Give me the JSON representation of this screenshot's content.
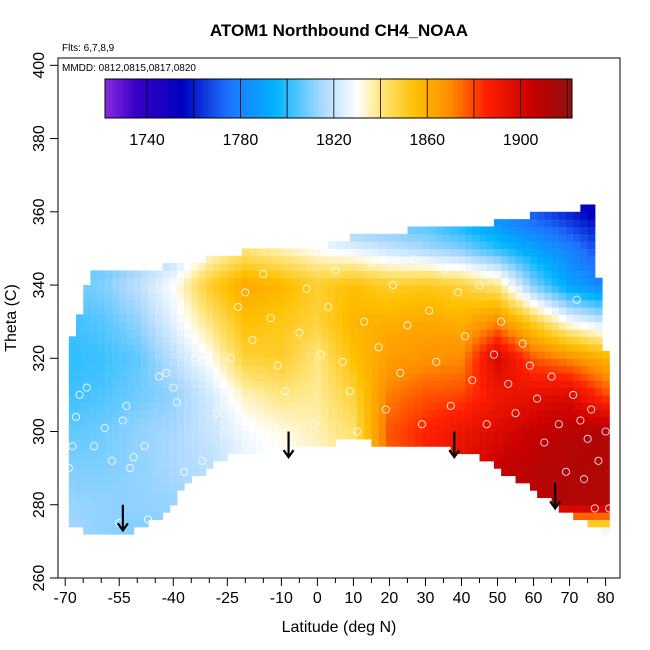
{
  "chart_data": {
    "type": "heatmap",
    "title": "ATOM1 Northbound CH4_NOAA",
    "annotations": {
      "flights": "Flts: 6,7,8,9",
      "dates": "MMDD: 0812,0815,0817,0820"
    },
    "xlabel": "Latitude (deg N)",
    "ylabel": "Theta (C)",
    "xlim": [
      -72,
      84
    ],
    "ylim": [
      260,
      402
    ],
    "x_ticks": [
      -70,
      -55,
      -40,
      -25,
      -10,
      0,
      10,
      20,
      30,
      40,
      50,
      60,
      70,
      80
    ],
    "x_tick_labels": [
      "-70",
      "-55",
      "-40",
      "-25",
      "-10",
      "0",
      "10",
      "20",
      "30",
      "40",
      "50",
      "60",
      "70",
      "80"
    ],
    "x_minor_ticks": [
      -65,
      -60,
      -50,
      -45,
      -35,
      -30,
      -20,
      -15,
      -5,
      5,
      15,
      25,
      35,
      45,
      55,
      65,
      75
    ],
    "y_ticks": [
      260,
      280,
      300,
      320,
      340,
      360,
      380,
      400
    ],
    "y_tick_labels": [
      "260",
      "280",
      "300",
      "320",
      "340",
      "360",
      "380",
      "400"
    ],
    "colorbar": {
      "range": [
        1722,
        1922
      ],
      "ticks": [
        1740,
        1780,
        1820,
        1860,
        1900
      ],
      "tick_labels": [
        "1740",
        "1780",
        "1820",
        "1860",
        "1900"
      ],
      "stops": [
        {
          "v": 1722,
          "c": "#8a2be2"
        },
        {
          "v": 1735,
          "c": "#3a00c8"
        },
        {
          "v": 1755,
          "c": "#0000c0"
        },
        {
          "v": 1775,
          "c": "#1e73ff"
        },
        {
          "v": 1795,
          "c": "#00b4ff"
        },
        {
          "v": 1815,
          "c": "#aad8ff"
        },
        {
          "v": 1830,
          "c": "#ffffff"
        },
        {
          "v": 1840,
          "c": "#ffe680"
        },
        {
          "v": 1855,
          "c": "#ffc000"
        },
        {
          "v": 1870,
          "c": "#ff8c00"
        },
        {
          "v": 1885,
          "c": "#ff2000"
        },
        {
          "v": 1905,
          "c": "#c80000"
        },
        {
          "v": 1922,
          "c": "#901010"
        }
      ]
    },
    "field": {
      "description": "approximate CH4 field sampled on a latitude x theta grid",
      "lat": [
        -70,
        -60,
        -50,
        -40,
        -30,
        -20,
        -10,
        0,
        10,
        20,
        30,
        40,
        50,
        60,
        70,
        80
      ],
      "theta": [
        272,
        280,
        290,
        300,
        310,
        320,
        330,
        340,
        350,
        360
      ],
      "values": [
        [
          1815,
          1812,
          1810,
          1811,
          1812,
          1814,
          1816,
          1817,
          1818,
          1815,
          1815,
          1815,
          1815,
          1815,
          1815,
          1815
        ],
        [
          1813,
          1812,
          1812,
          1813,
          1815,
          1820,
          1825,
          1830,
          1835,
          1860,
          1878,
          1892,
          1905,
          1910,
          1912,
          1912
        ],
        [
          1810,
          1810,
          1812,
          1815,
          1818,
          1825,
          1830,
          1832,
          1840,
          1875,
          1885,
          1895,
          1905,
          1910,
          1912,
          1912
        ],
        [
          1806,
          1808,
          1812,
          1815,
          1820,
          1828,
          1832,
          1836,
          1842,
          1878,
          1885,
          1892,
          1898,
          1905,
          1910,
          1912
        ],
        [
          1802,
          1804,
          1808,
          1812,
          1822,
          1835,
          1840,
          1838,
          1848,
          1872,
          1878,
          1880,
          1890,
          1895,
          1898,
          1880
        ],
        [
          1800,
          1802,
          1806,
          1818,
          1830,
          1848,
          1850,
          1840,
          1855,
          1865,
          1868,
          1870,
          1900,
          1878,
          1870,
          1860
        ],
        [
          1802,
          1805,
          1812,
          1825,
          1840,
          1855,
          1852,
          1848,
          1858,
          1860,
          1862,
          1860,
          1870,
          1850,
          1830,
          1820
        ],
        [
          1808,
          1810,
          1818,
          1830,
          1850,
          1862,
          1858,
          1850,
          1855,
          1850,
          1852,
          1848,
          1840,
          1810,
          1790,
          1780
        ],
        [
          1805,
          1805,
          1810,
          1815,
          1830,
          1840,
          1835,
          1830,
          1825,
          1820,
          1815,
          1810,
          1800,
          1790,
          1780,
          1765
        ],
        [
          1800,
          1800,
          1800,
          1800,
          1800,
          1800,
          1800,
          1800,
          1800,
          1800,
          1800,
          1790,
          1780,
          1770,
          1760,
          1750
        ]
      ]
    },
    "coverage": {
      "bottom_theta_by_lat": [
        [
          -68,
          274
        ],
        [
          -61,
          272
        ],
        [
          -52,
          273
        ],
        [
          -44,
          276
        ],
        [
          -35,
          287
        ],
        [
          -25,
          293
        ],
        [
          -10,
          296
        ],
        [
          0,
          296
        ],
        [
          10,
          298
        ],
        [
          20,
          296
        ],
        [
          38,
          295
        ],
        [
          44,
          294
        ],
        [
          55,
          287
        ],
        [
          66,
          280
        ],
        [
          76,
          274
        ],
        [
          80,
          273
        ]
      ],
      "top_theta_by_lat": [
        [
          -68,
          325
        ],
        [
          -66,
          332
        ],
        [
          -65,
          338
        ],
        [
          -62,
          344
        ],
        [
          -50,
          344
        ],
        [
          -42,
          345
        ],
        [
          -30,
          347
        ],
        [
          -15,
          350
        ],
        [
          0,
          350
        ],
        [
          10,
          353
        ],
        [
          25,
          355
        ],
        [
          40,
          356
        ],
        [
          50,
          357
        ],
        [
          60,
          359
        ],
        [
          72,
          360
        ],
        [
          76,
          362
        ],
        [
          80,
          322
        ]
      ]
    },
    "sample_points": [
      [
        -69,
        290
      ],
      [
        -68,
        296
      ],
      [
        -67,
        304
      ],
      [
        -66,
        310
      ],
      [
        -64,
        312
      ],
      [
        -62,
        296
      ],
      [
        -59,
        301
      ],
      [
        -57,
        292
      ],
      [
        -55,
        275
      ],
      [
        -54,
        303
      ],
      [
        -53,
        307
      ],
      [
        -52,
        290
      ],
      [
        -51,
        293
      ],
      [
        -48,
        296
      ],
      [
        -47,
        276
      ],
      [
        -44,
        315
      ],
      [
        -42,
        316
      ],
      [
        -40,
        312
      ],
      [
        -39,
        308
      ],
      [
        -37,
        289
      ],
      [
        -34,
        320
      ],
      [
        -32,
        292
      ],
      [
        -28,
        305
      ],
      [
        -26,
        300
      ],
      [
        -24,
        320
      ],
      [
        -22,
        334
      ],
      [
        -20,
        338
      ],
      [
        -18,
        325
      ],
      [
        -15,
        343
      ],
      [
        -13,
        331
      ],
      [
        -11,
        318
      ],
      [
        -9,
        311
      ],
      [
        -7,
        296
      ],
      [
        -5,
        327
      ],
      [
        -3,
        339
      ],
      [
        -1,
        302
      ],
      [
        1,
        321
      ],
      [
        3,
        334
      ],
      [
        5,
        344
      ],
      [
        7,
        319
      ],
      [
        9,
        311
      ],
      [
        11,
        300
      ],
      [
        13,
        330
      ],
      [
        15,
        346
      ],
      [
        17,
        323
      ],
      [
        19,
        306
      ],
      [
        21,
        340
      ],
      [
        23,
        316
      ],
      [
        25,
        329
      ],
      [
        27,
        347
      ],
      [
        29,
        302
      ],
      [
        31,
        333
      ],
      [
        33,
        319
      ],
      [
        35,
        344
      ],
      [
        37,
        307
      ],
      [
        39,
        338
      ],
      [
        41,
        326
      ],
      [
        43,
        314
      ],
      [
        45,
        340
      ],
      [
        47,
        302
      ],
      [
        49,
        321
      ],
      [
        51,
        330
      ],
      [
        53,
        313
      ],
      [
        55,
        305
      ],
      [
        57,
        324
      ],
      [
        59,
        318
      ],
      [
        61,
        309
      ],
      [
        63,
        297
      ],
      [
        65,
        315
      ],
      [
        67,
        302
      ],
      [
        69,
        289
      ],
      [
        71,
        310
      ],
      [
        72,
        336
      ],
      [
        73,
        303
      ],
      [
        74,
        287
      ],
      [
        75,
        298
      ],
      [
        76,
        306
      ],
      [
        77,
        279
      ],
      [
        78,
        292
      ],
      [
        79,
        345
      ],
      [
        80,
        300
      ],
      [
        81,
        279
      ]
    ],
    "arrows": [
      {
        "x": -54,
        "y_from": 280,
        "y_to": 273
      },
      {
        "x": -8,
        "y_from": 300,
        "y_to": 293
      },
      {
        "x": 38,
        "y_from": 300,
        "y_to": 293
      },
      {
        "x": 66,
        "y_from": 286,
        "y_to": 279
      }
    ]
  }
}
